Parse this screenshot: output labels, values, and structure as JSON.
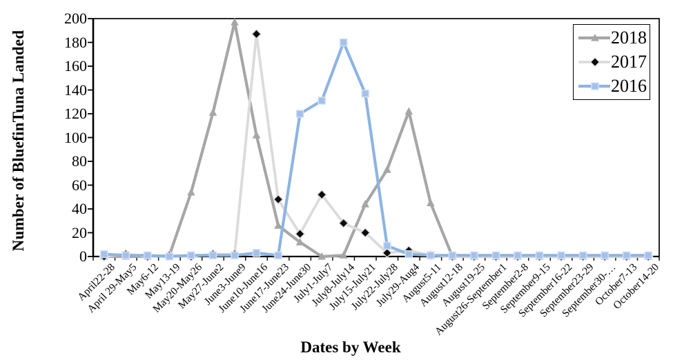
{
  "chart_data": {
    "type": "line",
    "title": "",
    "xlabel": "Dates by Week",
    "ylabel": "Number of BluefinTuna Landed",
    "ylim": [
      0,
      200
    ],
    "ytick_step": 20,
    "yticks": [
      0,
      20,
      40,
      60,
      80,
      100,
      120,
      140,
      160,
      180,
      200
    ],
    "grid": false,
    "legend_position": "top-right",
    "categories": [
      "April22-28",
      "April 29-May5",
      "May6-12",
      "May13-19",
      "May20-May26",
      "May27-June2",
      "June3-June9",
      "June10-June16",
      "June17-June23",
      "June24-June30",
      "July1-July7",
      "July8-July14",
      "July15-July21",
      "July22-July28",
      "July29-Aug4",
      "August5-11",
      "August12-18",
      "August19-25",
      "August26-September1",
      "September2-8",
      "September9-15",
      "September16-22",
      "September23-29",
      "September30-…",
      "October7-13",
      "October14-20"
    ],
    "series": [
      {
        "name": "2018",
        "marker": "triangle",
        "line_color": "#A6A6A6",
        "marker_color": "#A6A6A6",
        "marker_stroke": "#A6A6A6",
        "line_width": 4.2,
        "values": [
          0,
          0,
          0,
          1,
          54,
          121,
          197,
          102,
          26,
          12,
          0,
          1,
          44,
          73,
          122,
          45,
          0,
          0,
          0,
          0,
          0,
          0,
          0,
          0,
          0,
          0
        ]
      },
      {
        "name": "2017",
        "marker": "diamond",
        "line_color": "#DBDBDB",
        "marker_color": "#0A0A0A",
        "marker_stroke": "#DCDCDC",
        "line_width": 3.8,
        "values": [
          0,
          2,
          0,
          1,
          0,
          2,
          2,
          187,
          48,
          19,
          52,
          28,
          20,
          3,
          5,
          1,
          0,
          0,
          0,
          0,
          0,
          0,
          0,
          0,
          0,
          0
        ]
      },
      {
        "name": "2016",
        "marker": "square",
        "line_color": "#8DB4E2",
        "marker_color": "#A3C1EA",
        "marker_stroke": "#D3E0F4",
        "line_width": 4.2,
        "values": [
          2,
          1,
          1,
          0,
          1,
          1,
          1,
          3,
          1,
          120,
          131,
          180,
          137,
          9,
          2,
          1,
          1,
          1,
          1,
          1,
          1,
          1,
          1,
          1,
          1,
          1
        ]
      }
    ],
    "axis_color": "#000000",
    "background_color": "#FFFFFF"
  }
}
